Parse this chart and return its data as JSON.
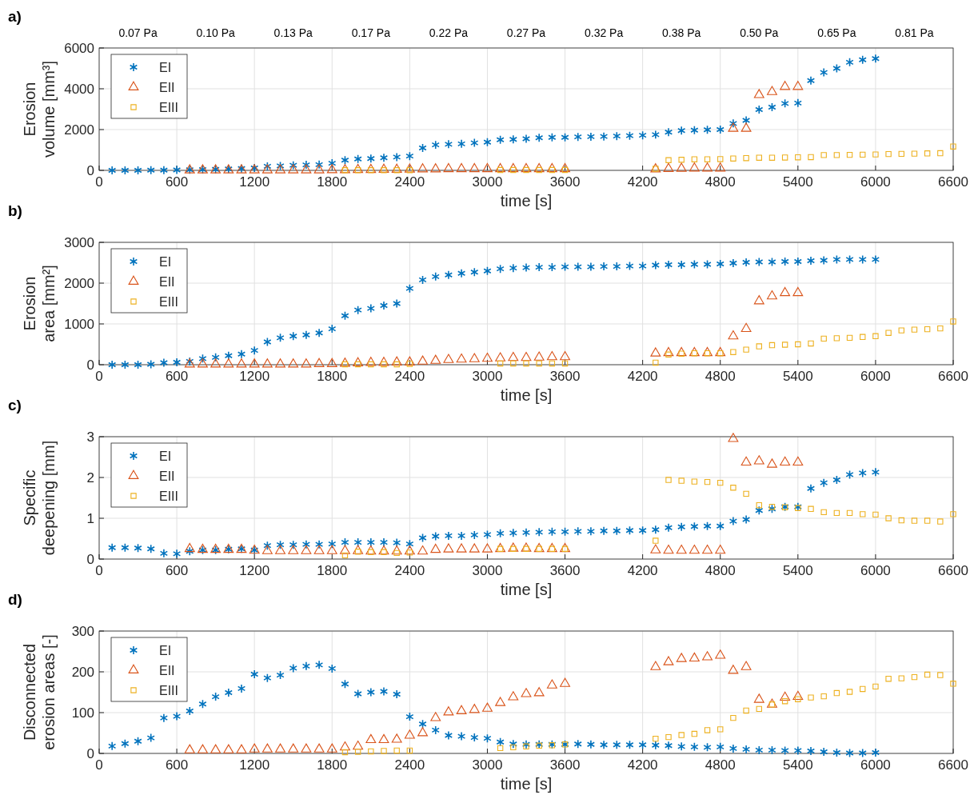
{
  "chart_data": [
    {
      "type": "scatter",
      "title": "a)",
      "xlabel": "time [s]",
      "ylabel": "Erosion volume [mm³]",
      "grid": true,
      "legend": "top left",
      "annotations": [
        "0.07 Pa",
        "0.10 Pa",
        "0.13 Pa",
        "0.17 Pa",
        "0.22 Pa",
        "0.27 Pa",
        "0.32 Pa",
        "0.38 Pa",
        "0.50 Pa",
        "0.65 Pa",
        "0.81 Pa"
      ],
      "xlim": [
        0,
        6600
      ],
      "xticks": [
        0,
        600,
        1200,
        1800,
        2400,
        3000,
        3600,
        4200,
        4800,
        5400,
        6000,
        6600
      ],
      "ylim": [
        0,
        6000
      ],
      "yticks": [
        0,
        2000,
        4000,
        6000
      ],
      "x": [
        100,
        200,
        300,
        400,
        500,
        600,
        700,
        800,
        900,
        1000,
        1100,
        1200,
        1300,
        1400,
        1500,
        1600,
        1700,
        1800,
        1900,
        2000,
        2100,
        2200,
        2300,
        2400,
        2500,
        2600,
        2700,
        2800,
        2900,
        3000,
        3100,
        3200,
        3300,
        3400,
        3500,
        3600,
        3700,
        3800,
        3900,
        4000,
        4100,
        4200,
        4300,
        4400,
        4500,
        4600,
        4700,
        4800,
        4900,
        5000,
        5100,
        5200,
        5300,
        5400,
        5500,
        5600,
        5700,
        5800,
        5900,
        6000,
        6100,
        6200,
        6300,
        6400,
        6500,
        6600
      ],
      "series": [
        {
          "name": "EI",
          "color": "#0072bd",
          "marker": "cross",
          "values": [
            0,
            0,
            0,
            10,
            10,
            20,
            30,
            40,
            50,
            70,
            90,
            120,
            200,
            220,
            250,
            270,
            280,
            350,
            500,
            560,
            580,
            620,
            650,
            700,
            1100,
            1250,
            1280,
            1300,
            1350,
            1380,
            1500,
            1520,
            1550,
            1600,
            1620,
            1620,
            1640,
            1650,
            1660,
            1680,
            1700,
            1720,
            1750,
            1870,
            1950,
            1970,
            1990,
            2000,
            2300,
            2450,
            2980,
            3100,
            3280,
            3300,
            4400,
            4800,
            5000,
            5300,
            5420,
            5480,
            null,
            null,
            null,
            null,
            null,
            null
          ]
        },
        {
          "name": "EII",
          "color": "#d95319",
          "marker": "triangle",
          "values": [
            null,
            null,
            null,
            null,
            null,
            null,
            10,
            10,
            10,
            10,
            10,
            10,
            10,
            10,
            10,
            10,
            10,
            20,
            20,
            30,
            30,
            40,
            40,
            50,
            60,
            60,
            70,
            70,
            70,
            70,
            70,
            70,
            70,
            70,
            70,
            70,
            null,
            null,
            null,
            null,
            null,
            null,
            60,
            80,
            90,
            100,
            100,
            100,
            2050,
            2050,
            3700,
            3850,
            4100,
            4100,
            null,
            null,
            null,
            null,
            null,
            null,
            null,
            null,
            null,
            null,
            null,
            null
          ]
        },
        {
          "name": "EIII",
          "color": "#edb120",
          "marker": "square",
          "values": [
            null,
            null,
            null,
            null,
            null,
            null,
            null,
            null,
            null,
            null,
            null,
            null,
            null,
            null,
            null,
            null,
            null,
            null,
            10,
            10,
            10,
            10,
            10,
            10,
            null,
            null,
            null,
            null,
            null,
            null,
            20,
            20,
            20,
            20,
            20,
            20,
            null,
            null,
            null,
            null,
            null,
            null,
            80,
            500,
            520,
            540,
            540,
            550,
            580,
            600,
            620,
            620,
            630,
            640,
            650,
            750,
            750,
            760,
            770,
            780,
            800,
            810,
            820,
            830,
            840,
            1170
          ]
        }
      ]
    },
    {
      "type": "scatter",
      "title": "b)",
      "xlabel": "time [s]",
      "ylabel": "Erosion area [mm²]",
      "grid": true,
      "legend": "top left",
      "xlim": [
        0,
        6600
      ],
      "xticks": [
        0,
        600,
        1200,
        1800,
        2400,
        3000,
        3600,
        4200,
        4800,
        5400,
        6000,
        6600
      ],
      "ylim": [
        0,
        3000
      ],
      "yticks": [
        0,
        1000,
        2000,
        3000
      ],
      "x": [
        100,
        200,
        300,
        400,
        500,
        600,
        700,
        800,
        900,
        1000,
        1100,
        1200,
        1300,
        1400,
        1500,
        1600,
        1700,
        1800,
        1900,
        2000,
        2100,
        2200,
        2300,
        2400,
        2500,
        2600,
        2700,
        2800,
        2900,
        3000,
        3100,
        3200,
        3300,
        3400,
        3500,
        3600,
        3700,
        3800,
        3900,
        4000,
        4100,
        4200,
        4300,
        4400,
        4500,
        4600,
        4700,
        4800,
        4900,
        5000,
        5100,
        5200,
        5300,
        5400,
        5500,
        5600,
        5700,
        5800,
        5900,
        6000,
        6100,
        6200,
        6300,
        6400,
        6500,
        6600
      ],
      "series": [
        {
          "name": "EI",
          "color": "#0072bd",
          "marker": "cross",
          "values": [
            0,
            0,
            0,
            10,
            50,
            60,
            80,
            150,
            180,
            220,
            260,
            350,
            560,
            660,
            700,
            730,
            780,
            880,
            1200,
            1340,
            1380,
            1450,
            1500,
            1870,
            2080,
            2160,
            2200,
            2240,
            2270,
            2300,
            2350,
            2370,
            2380,
            2390,
            2390,
            2400,
            2400,
            2400,
            2410,
            2410,
            2420,
            2420,
            2440,
            2450,
            2450,
            2460,
            2460,
            2470,
            2490,
            2510,
            2520,
            2520,
            2530,
            2530,
            2550,
            2560,
            2580,
            2580,
            2580,
            2580,
            null,
            null,
            null,
            null,
            null,
            null
          ]
        },
        {
          "name": "EII",
          "color": "#d95319",
          "marker": "triangle",
          "values": [
            null,
            null,
            null,
            null,
            null,
            null,
            10,
            10,
            10,
            10,
            10,
            10,
            10,
            10,
            10,
            10,
            20,
            20,
            30,
            40,
            50,
            50,
            60,
            60,
            80,
            100,
            120,
            130,
            140,
            150,
            160,
            170,
            170,
            180,
            190,
            190,
            null,
            null,
            null,
            null,
            null,
            null,
            280,
            290,
            290,
            290,
            290,
            290,
            700,
            880,
            1560,
            1680,
            1760,
            1760,
            null,
            null,
            null,
            null,
            null,
            null,
            null,
            null,
            null,
            null,
            null,
            null
          ]
        },
        {
          "name": "EIII",
          "color": "#edb120",
          "marker": "square",
          "values": [
            null,
            null,
            null,
            null,
            null,
            null,
            null,
            null,
            null,
            null,
            null,
            null,
            null,
            null,
            null,
            null,
            null,
            null,
            10,
            10,
            10,
            10,
            10,
            20,
            null,
            null,
            null,
            null,
            null,
            null,
            30,
            30,
            30,
            30,
            30,
            30,
            null,
            null,
            null,
            null,
            null,
            null,
            50,
            250,
            270,
            280,
            280,
            280,
            310,
            370,
            450,
            480,
            490,
            500,
            520,
            640,
            650,
            660,
            680,
            700,
            780,
            840,
            860,
            870,
            890,
            1060
          ]
        }
      ]
    },
    {
      "type": "scatter",
      "title": "c)",
      "xlabel": "time [s]",
      "ylabel": "Specific deepening [mm]",
      "grid": true,
      "legend": "top left",
      "xlim": [
        0,
        6600
      ],
      "xticks": [
        0,
        600,
        1200,
        1800,
        2400,
        3000,
        3600,
        4200,
        4800,
        5400,
        6000,
        6600
      ],
      "ylim": [
        0,
        3
      ],
      "yticks": [
        0,
        1,
        2,
        3
      ],
      "x": [
        100,
        200,
        300,
        400,
        500,
        600,
        700,
        800,
        900,
        1000,
        1100,
        1200,
        1300,
        1400,
        1500,
        1600,
        1700,
        1800,
        1900,
        2000,
        2100,
        2200,
        2300,
        2400,
        2500,
        2600,
        2700,
        2800,
        2900,
        3000,
        3100,
        3200,
        3300,
        3400,
        3500,
        3600,
        3700,
        3800,
        3900,
        4000,
        4100,
        4200,
        4300,
        4400,
        4500,
        4600,
        4700,
        4800,
        4900,
        5000,
        5100,
        5200,
        5300,
        5400,
        5500,
        5600,
        5700,
        5800,
        5900,
        6000,
        6100,
        6200,
        6300,
        6400,
        6500,
        6600
      ],
      "series": [
        {
          "name": "EI",
          "color": "#0072bd",
          "marker": "cross",
          "values": [
            0.28,
            0.28,
            0.27,
            0.25,
            0.14,
            0.13,
            0.19,
            0.22,
            0.22,
            0.24,
            0.25,
            0.22,
            0.33,
            0.35,
            0.35,
            0.36,
            0.36,
            0.37,
            0.41,
            0.41,
            0.41,
            0.41,
            0.4,
            0.37,
            0.52,
            0.56,
            0.57,
            0.57,
            0.59,
            0.6,
            0.63,
            0.64,
            0.65,
            0.66,
            0.67,
            0.67,
            0.68,
            0.68,
            0.69,
            0.69,
            0.7,
            0.7,
            0.72,
            0.77,
            0.79,
            0.8,
            0.81,
            0.81,
            0.93,
            0.97,
            1.19,
            1.23,
            1.28,
            1.28,
            1.73,
            1.87,
            1.94,
            2.07,
            2.11,
            2.13,
            null,
            null,
            null,
            null,
            null,
            null
          ]
        },
        {
          "name": "EII",
          "color": "#d95319",
          "marker": "triangle",
          "values": [
            null,
            null,
            null,
            null,
            null,
            null,
            0.25,
            0.23,
            0.23,
            0.23,
            0.23,
            0.21,
            0.2,
            0.2,
            0.2,
            0.2,
            0.2,
            0.2,
            0.2,
            0.2,
            0.19,
            0.19,
            0.19,
            0.19,
            0.19,
            0.23,
            0.24,
            0.24,
            0.24,
            0.24,
            0.25,
            0.26,
            0.26,
            0.25,
            0.25,
            0.25,
            null,
            null,
            null,
            null,
            null,
            null,
            0.22,
            0.21,
            0.21,
            0.21,
            0.21,
            0.21,
            2.95,
            2.37,
            2.4,
            2.32,
            2.37,
            2.37,
            null,
            null,
            null,
            null,
            null,
            null,
            null,
            null,
            null,
            null,
            null,
            null
          ]
        },
        {
          "name": "EIII",
          "color": "#edb120",
          "marker": "square",
          "values": [
            null,
            null,
            null,
            null,
            null,
            null,
            null,
            null,
            null,
            null,
            null,
            null,
            null,
            null,
            null,
            null,
            null,
            null,
            0.09,
            0.18,
            0.17,
            0.17,
            0.15,
            0.16,
            null,
            null,
            null,
            null,
            null,
            null,
            0.25,
            0.25,
            0.25,
            0.25,
            0.25,
            0.25,
            null,
            null,
            null,
            null,
            null,
            null,
            0.45,
            1.94,
            1.92,
            1.9,
            1.89,
            1.87,
            1.75,
            1.6,
            1.32,
            1.28,
            1.27,
            1.25,
            1.23,
            1.15,
            1.13,
            1.13,
            1.1,
            1.09,
            1,
            0.95,
            0.94,
            0.94,
            0.92,
            1.1
          ]
        }
      ]
    },
    {
      "type": "scatter",
      "title": "d)",
      "xlabel": "time [s]",
      "ylabel": "Disconnected erosion areas [-]",
      "grid": true,
      "legend": "top left",
      "xlim": [
        0,
        6600
      ],
      "xticks": [
        0,
        600,
        1200,
        1800,
        2400,
        3000,
        3600,
        4200,
        4800,
        5400,
        6000,
        6600
      ],
      "ylim": [
        0,
        300
      ],
      "yticks": [
        0,
        100,
        200,
        300
      ],
      "x": [
        100,
        200,
        300,
        400,
        500,
        600,
        700,
        800,
        900,
        1000,
        1100,
        1200,
        1300,
        1400,
        1500,
        1600,
        1700,
        1800,
        1900,
        2000,
        2100,
        2200,
        2300,
        2400,
        2500,
        2600,
        2700,
        2800,
        2900,
        3000,
        3100,
        3200,
        3300,
        3400,
        3500,
        3600,
        3700,
        3800,
        3900,
        4000,
        4100,
        4200,
        4300,
        4400,
        4500,
        4600,
        4700,
        4800,
        4900,
        5000,
        5100,
        5200,
        5300,
        5400,
        5500,
        5600,
        5700,
        5800,
        5900,
        6000,
        6100,
        6200,
        6300,
        6400,
        6500,
        6600
      ],
      "series": [
        {
          "name": "EI",
          "color": "#0072bd",
          "marker": "cross",
          "values": [
            18,
            24,
            30,
            38,
            87,
            91,
            104,
            121,
            139,
            149,
            159,
            194,
            185,
            192,
            209,
            214,
            217,
            208,
            170,
            146,
            150,
            152,
            145,
            90,
            72,
            57,
            44,
            42,
            39,
            37,
            28,
            23,
            22,
            22,
            22,
            22,
            23,
            22,
            21,
            21,
            21,
            21,
            20,
            19,
            17,
            16,
            15,
            16,
            12,
            10,
            8,
            8,
            7,
            7,
            6,
            4,
            2,
            1,
            1,
            2,
            null,
            null,
            null,
            null,
            null,
            null
          ]
        },
        {
          "name": "EII",
          "color": "#d95319",
          "marker": "triangle",
          "values": [
            null,
            null,
            null,
            null,
            null,
            null,
            8,
            8,
            8,
            8,
            8,
            10,
            10,
            10,
            10,
            10,
            10,
            10,
            15,
            17,
            33,
            33,
            34,
            44,
            50,
            87,
            101,
            104,
            107,
            110,
            124,
            138,
            146,
            148,
            167,
            171,
            null,
            null,
            null,
            null,
            null,
            null,
            212,
            224,
            232,
            233,
            236,
            240,
            203,
            212,
            132,
            120,
            137,
            139,
            null,
            null,
            null,
            null,
            null,
            null,
            null,
            null,
            null,
            null,
            null,
            null
          ]
        },
        {
          "name": "EIII",
          "color": "#edb120",
          "marker": "square",
          "values": [
            null,
            null,
            null,
            null,
            null,
            null,
            null,
            null,
            null,
            null,
            null,
            null,
            null,
            null,
            null,
            null,
            null,
            null,
            3,
            4,
            5,
            6,
            7,
            7,
            null,
            null,
            null,
            null,
            null,
            null,
            13,
            15,
            17,
            19,
            20,
            22,
            null,
            null,
            null,
            null,
            null,
            null,
            36,
            40,
            45,
            48,
            57,
            59,
            87,
            105,
            109,
            120,
            128,
            133,
            137,
            140,
            148,
            151,
            158,
            164,
            183,
            184,
            187,
            193,
            192,
            171
          ]
        }
      ]
    }
  ]
}
